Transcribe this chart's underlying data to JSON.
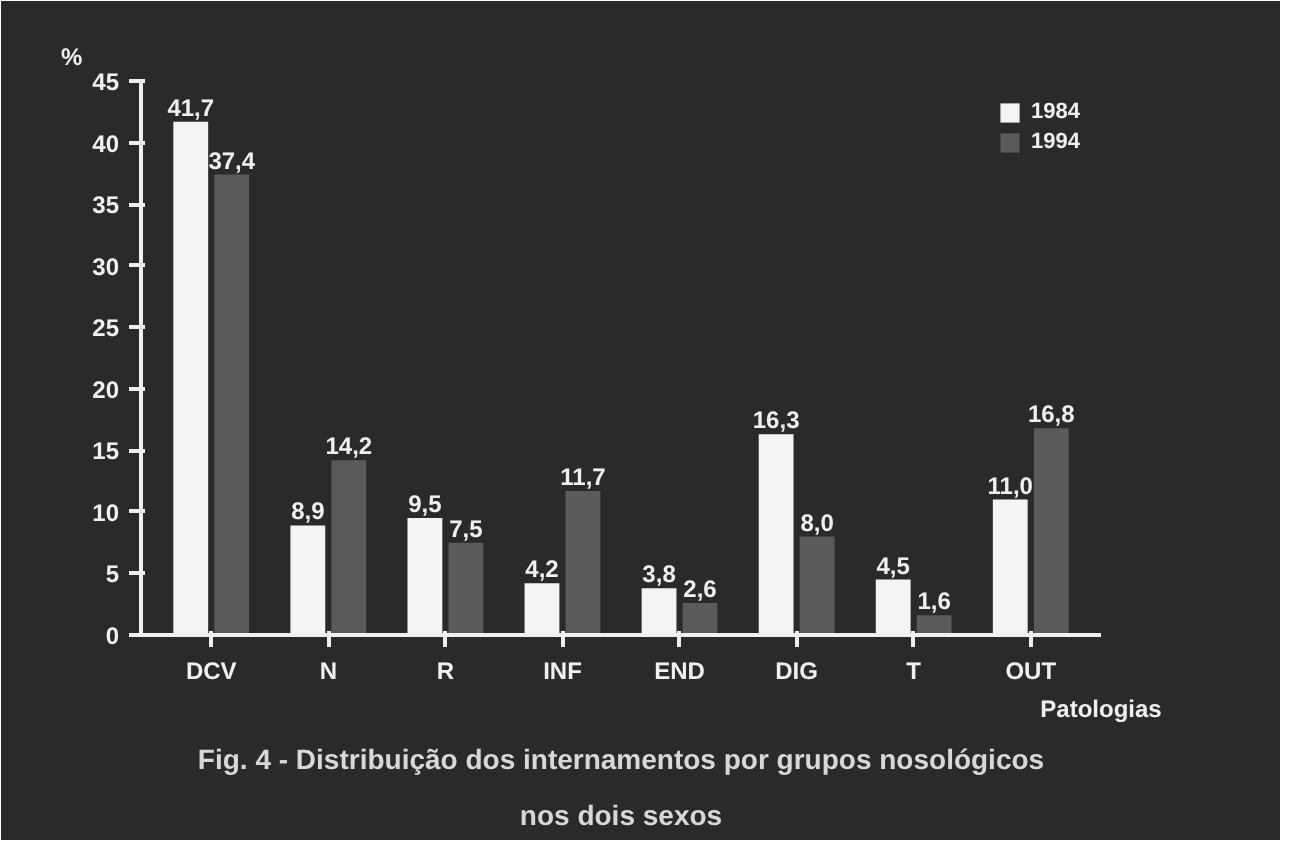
{
  "chart_data": {
    "type": "bar",
    "title": "Fig. 4 - Distribuição dos internamentos por grupos nosológicos nos dois sexos",
    "xlabel": "Patologias",
    "ylabel": "%",
    "categories": [
      "DCV",
      "N",
      "R",
      "INF",
      "END",
      "DIG",
      "T",
      "OUT"
    ],
    "series": [
      {
        "name": "1984",
        "color": "#f4f4f4",
        "values": [
          41.7,
          8.9,
          9.5,
          4.2,
          3.8,
          16.3,
          4.5,
          11.0
        ],
        "value_labels": [
          "41,7",
          "8,9",
          "9,5",
          "4,2",
          "3,8",
          "16,3",
          "4,5",
          "11,0"
        ]
      },
      {
        "name": "1994",
        "color": "#5a5a5a",
        "values": [
          37.4,
          14.2,
          7.5,
          11.7,
          2.6,
          8.0,
          1.6,
          16.8
        ],
        "value_labels": [
          "37,4",
          "14,2",
          "7,5",
          "11,7",
          "2,6",
          "8,0",
          "1,6",
          "16,8"
        ]
      }
    ],
    "ylim": [
      0,
      45
    ],
    "yticks": [
      0,
      5,
      10,
      15,
      20,
      25,
      30,
      35,
      40,
      45
    ],
    "grid": false,
    "legend": "top right"
  }
}
